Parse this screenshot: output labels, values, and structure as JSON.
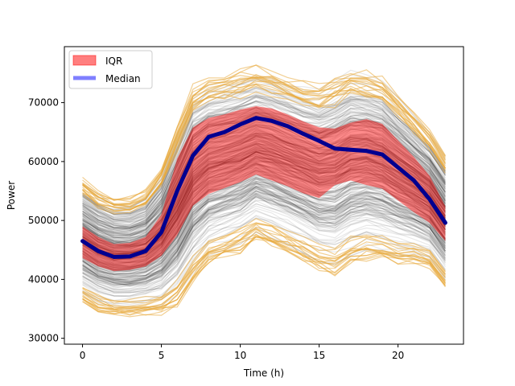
{
  "chart_data": {
    "type": "line",
    "title": "",
    "xlabel": "Time (h)",
    "ylabel": "Power",
    "xlim": [
      -1.15,
      24.15
    ],
    "ylim": [
      29000,
      79500
    ],
    "x_ticks": [
      0,
      5,
      10,
      15,
      20
    ],
    "y_ticks": [
      30000,
      40000,
      50000,
      60000,
      70000
    ],
    "y_tick_labels": [
      "30000",
      "40000",
      "50000",
      "60000",
      "70000"
    ],
    "x": [
      0,
      1,
      2,
      3,
      4,
      5,
      6,
      7,
      8,
      9,
      10,
      11,
      12,
      13,
      14,
      15,
      16,
      17,
      18,
      19,
      20,
      21,
      22,
      23
    ],
    "median": [
      46500,
      44800,
      43800,
      43900,
      44800,
      48000,
      55000,
      61000,
      64200,
      65000,
      66300,
      67400,
      66900,
      66000,
      64700,
      63500,
      62200,
      62000,
      61800,
      61200,
      59000,
      56800,
      53600,
      49600
    ],
    "iqr_lower": [
      43600,
      42200,
      41400,
      41600,
      42200,
      44000,
      47500,
      52500,
      54500,
      55500,
      56500,
      57800,
      56800,
      55800,
      54600,
      53800,
      56000,
      56800,
      56000,
      55400,
      53400,
      51400,
      49600,
      46500
    ],
    "iqr_upper": [
      49000,
      47200,
      46000,
      46200,
      47200,
      51000,
      60500,
      65800,
      67400,
      68000,
      68800,
      69400,
      69000,
      68000,
      66800,
      65800,
      65600,
      66600,
      67200,
      66400,
      63600,
      60800,
      57600,
      52400
    ],
    "envelope_lower": [
      37000,
      35500,
      34800,
      34800,
      35000,
      35400,
      37000,
      41000,
      44000,
      45000,
      46000,
      48000,
      47000,
      45800,
      44500,
      43000,
      42400,
      44000,
      45000,
      44500,
      44000,
      43800,
      43000,
      39500
    ],
    "envelope_upper": [
      57000,
      55000,
      53800,
      53800,
      55000,
      59000,
      66000,
      72500,
      74200,
      74600,
      75200,
      75800,
      75200,
      74200,
      73200,
      72600,
      74000,
      75500,
      75000,
      74000,
      71000,
      68000,
      65000,
      61000
    ],
    "legend": {
      "position": "top-left",
      "entries": [
        {
          "label": "IQR",
          "color": "#ff0000",
          "kind": "patch"
        },
        {
          "label": "Median",
          "color": "#0000ff",
          "kind": "line"
        }
      ]
    },
    "colors": {
      "median_line": "#000090",
      "iqr_fill": "#ff0000",
      "ensemble_lines": "#000000",
      "outlier_lines": "#e8a838"
    }
  }
}
